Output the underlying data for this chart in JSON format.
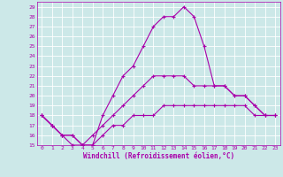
{
  "xlabel": "Windchill (Refroidissement éolien,°C)",
  "background_color": "#cce8e8",
  "grid_color": "#ffffff",
  "line_color": "#aa00aa",
  "xlim": [
    -0.5,
    23.5
  ],
  "ylim": [
    15,
    29.5
  ],
  "xticks": [
    0,
    1,
    2,
    3,
    4,
    5,
    6,
    7,
    8,
    9,
    10,
    11,
    12,
    13,
    14,
    15,
    16,
    17,
    18,
    19,
    20,
    21,
    22,
    23
  ],
  "yticks": [
    15,
    16,
    17,
    18,
    19,
    20,
    21,
    22,
    23,
    24,
    25,
    26,
    27,
    28,
    29
  ],
  "curve1_x": [
    0,
    1,
    2,
    3,
    4,
    5,
    6,
    7,
    8,
    9,
    10,
    11,
    12,
    13,
    14,
    15,
    16,
    17,
    18,
    19,
    20,
    21,
    22,
    23
  ],
  "curve1_y": [
    18,
    17,
    16,
    15,
    15,
    15,
    18,
    20,
    22,
    23,
    25,
    27,
    28,
    28,
    29,
    28,
    25,
    21,
    21,
    20,
    20,
    19,
    18,
    18
  ],
  "curve2_x": [
    0,
    1,
    2,
    3,
    4,
    5,
    6,
    7,
    8,
    9,
    10,
    11,
    12,
    13,
    14,
    15,
    16,
    17,
    18,
    19,
    20,
    21,
    22,
    23
  ],
  "curve2_y": [
    18,
    17,
    16,
    16,
    15,
    16,
    17,
    18,
    19,
    20,
    21,
    22,
    22,
    22,
    22,
    21,
    21,
    21,
    21,
    20,
    20,
    19,
    18,
    18
  ],
  "curve3_x": [
    0,
    1,
    2,
    3,
    4,
    5,
    6,
    7,
    8,
    9,
    10,
    11,
    12,
    13,
    14,
    15,
    16,
    17,
    18,
    19,
    20,
    21,
    22,
    23
  ],
  "curve3_y": [
    18,
    17,
    16,
    16,
    15,
    15,
    16,
    17,
    17,
    18,
    18,
    18,
    19,
    19,
    19,
    19,
    19,
    19,
    19,
    19,
    19,
    18,
    18,
    18
  ],
  "tick_fontsize": 4.5,
  "xlabel_fontsize": 5.5,
  "marker": "+"
}
